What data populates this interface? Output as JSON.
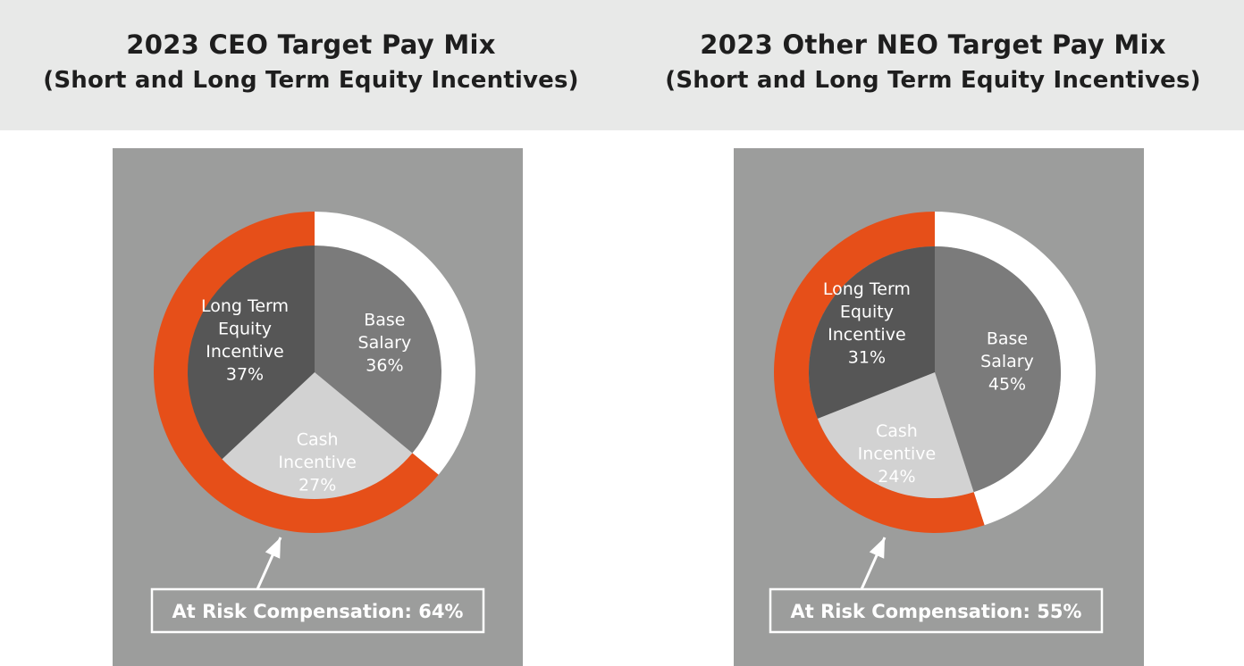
{
  "chart_data": [
    {
      "type": "pie",
      "title": "2023 CEO Target Pay Mix",
      "subtitle": "(Short and Long Term Equity Incentives)",
      "slices": [
        {
          "name": "Base Salary",
          "label_lines": [
            "Base",
            "Salary"
          ],
          "value": 36,
          "value_label": "36%"
        },
        {
          "name": "Cash Incentive",
          "label_lines": [
            "Cash",
            "Incentive"
          ],
          "value": 27,
          "value_label": "27%"
        },
        {
          "name": "Long Term Equity Incentive",
          "label_lines": [
            "Long Term",
            "Equity",
            "Incentive"
          ],
          "value": 37,
          "value_label": "37%"
        }
      ],
      "outer_ring": {
        "at_risk_value": 64
      },
      "callout": "At Risk Compensation: 64%"
    },
    {
      "type": "pie",
      "title": "2023 Other NEO Target Pay Mix",
      "subtitle": "(Short and Long Term Equity Incentives)",
      "slices": [
        {
          "name": "Base Salary",
          "label_lines": [
            "Base",
            "Salary"
          ],
          "value": 45,
          "value_label": "45%"
        },
        {
          "name": "Cash Incentive",
          "label_lines": [
            "Cash",
            "Incentive"
          ],
          "value": 24,
          "value_label": "24%"
        },
        {
          "name": "Long Term Equity Incentive",
          "label_lines": [
            "Long Term",
            "Equity",
            "Incentive"
          ],
          "value": 31,
          "value_label": "31%"
        }
      ],
      "outer_ring": {
        "at_risk_value": 55
      },
      "callout": "At Risk Compensation: 55%"
    }
  ],
  "colors": {
    "base_salary": "#7b7b7b",
    "cash_incentive": "#d2d2d2",
    "long_term_equity": "#565656",
    "at_risk_ring": "#e64f19",
    "fixed_ring": "#ffffff",
    "panel": "#9c9d9c",
    "header_band": "#e8e9e8"
  }
}
